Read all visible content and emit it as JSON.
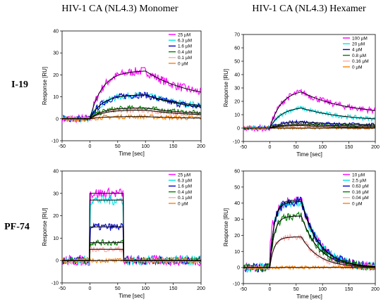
{
  "figure": {
    "column_titles": [
      "HIV-1 CA (NL4.3) Monomer",
      "HIV-1 CA (NL4.3) Hexamer"
    ],
    "row_labels": [
      "I-19",
      "PF-74"
    ]
  },
  "chart_data": [
    {
      "type": "line",
      "xlabel": "Time [sec]",
      "ylabel": "Response [RU]",
      "xlim": [
        -50,
        200
      ],
      "ylim": [
        -10,
        40
      ],
      "xticks": [
        -50,
        0,
        50,
        100,
        150,
        200
      ],
      "yticks": [
        -10,
        0,
        10,
        20,
        30,
        40
      ],
      "legend_position": "top-right",
      "inject_start": 0,
      "inject_end": 100,
      "series": [
        {
          "name": "25 µM",
          "color": "#ff00ff",
          "plateau": 22,
          "end_level": 8
        },
        {
          "name": "6.3 µM",
          "color": "#00e5e5",
          "plateau": 11,
          "end_level": 4
        },
        {
          "name": "1.6 µM",
          "color": "#0000cc",
          "plateau": 11,
          "end_level": 3
        },
        {
          "name": "0.4 µM",
          "color": "#008000",
          "plateau": 5,
          "end_level": 1.5
        },
        {
          "name": "0.1 µM",
          "color": "#ffaaaa",
          "plateau": 4,
          "end_level": 1
        },
        {
          "name": "0 µM",
          "color": "#ff8000",
          "plateau": 1,
          "end_level": 0
        }
      ]
    },
    {
      "type": "line",
      "xlabel": "Time [sec]",
      "ylabel": "Response [RU]",
      "xlim": [
        -50,
        200
      ],
      "ylim": [
        -10,
        70
      ],
      "xticks": [
        -50,
        0,
        50,
        100,
        150,
        200
      ],
      "yticks": [
        -10,
        0,
        10,
        20,
        30,
        40,
        50,
        60,
        70
      ],
      "legend_position": "top-right",
      "inject_start": 0,
      "inject_end": 60,
      "series": [
        {
          "name": "100 µM",
          "color": "#ff00ff",
          "plateau": 29,
          "end_level": 10
        },
        {
          "name": "20 µM",
          "color": "#00e5e5",
          "plateau": 16,
          "end_level": 5
        },
        {
          "name": "4 µM",
          "color": "#0000cc",
          "plateau": 5,
          "end_level": 2
        },
        {
          "name": "0.8 µM",
          "color": "#008000",
          "plateau": 3,
          "end_level": 1
        },
        {
          "name": "0.16 µM",
          "color": "#ffaaaa",
          "plateau": 2,
          "end_level": 0
        },
        {
          "name": "0 µM",
          "color": "#ff8000",
          "plateau": 0,
          "end_level": 0
        }
      ]
    },
    {
      "type": "line",
      "xlabel": "Time [sec]",
      "ylabel": "Response [RU]",
      "xlim": [
        -50,
        200
      ],
      "ylim": [
        -10,
        40
      ],
      "xticks": [
        -50,
        0,
        50,
        100,
        150,
        200
      ],
      "yticks": [
        -10,
        0,
        10,
        20,
        30,
        40
      ],
      "legend_position": "top-right",
      "inject_start": 0,
      "inject_end": 60,
      "series": [
        {
          "name": "25 µM",
          "color": "#ff00ff",
          "plateau": 30,
          "end_level": 0
        },
        {
          "name": "6.3 µM",
          "color": "#00e5e5",
          "plateau": 27,
          "end_level": 0
        },
        {
          "name": "1.6 µM",
          "color": "#0000cc",
          "plateau": 15,
          "end_level": 0
        },
        {
          "name": "0.4 µM",
          "color": "#008000",
          "plateau": 8,
          "end_level": 0
        },
        {
          "name": "0.1 µM",
          "color": "#ffaaaa",
          "plateau": 5,
          "end_level": 0
        },
        {
          "name": "0 µM",
          "color": "#ff8000",
          "plateau": 0,
          "end_level": 0
        }
      ]
    },
    {
      "type": "line",
      "xlabel": "Time [sec]",
      "ylabel": "Response [RU]",
      "xlim": [
        -50,
        200
      ],
      "ylim": [
        -10,
        60
      ],
      "xticks": [
        -50,
        0,
        50,
        100,
        150,
        200
      ],
      "yticks": [
        -10,
        0,
        10,
        20,
        30,
        40,
        50,
        60
      ],
      "legend_position": "top-right",
      "inject_start": 0,
      "inject_end": 60,
      "series": [
        {
          "name": "10 µM",
          "color": "#ff00ff",
          "plateau": 42,
          "end_level": 0
        },
        {
          "name": "2.5 µM",
          "color": "#00e5e5",
          "plateau": 41,
          "end_level": 0
        },
        {
          "name": "0.63 µM",
          "color": "#0000cc",
          "plateau": 41,
          "end_level": 0
        },
        {
          "name": "0.16 µM",
          "color": "#008000",
          "plateau": 32,
          "end_level": 0
        },
        {
          "name": "0.04 µM",
          "color": "#ffaaaa",
          "plateau": 19,
          "end_level": 0
        },
        {
          "name": "0 µM",
          "color": "#ff8000",
          "plateau": 0,
          "end_level": 0
        }
      ]
    }
  ]
}
